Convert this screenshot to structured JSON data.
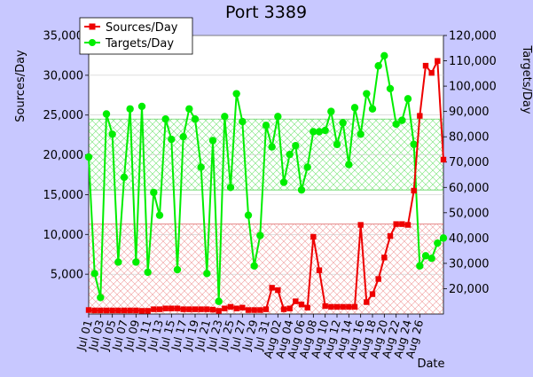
{
  "chart_data": {
    "type": "line",
    "title": "Port 3389",
    "xlabel": "Date",
    "ylabel_left": "Sources/Day",
    "ylabel_right": "Targets/Day",
    "ylim_left": [
      0,
      35000
    ],
    "ylim_right": [
      10000,
      120000
    ],
    "yticks_left": [
      "5,000",
      "10,000",
      "15,000",
      "20,000",
      "25,000",
      "30,000",
      "35,000"
    ],
    "yticks_left_values": [
      5000,
      10000,
      15000,
      20000,
      25000,
      30000,
      35000
    ],
    "yticks_right": [
      "20,000",
      "30,000",
      "40,000",
      "50,000",
      "60,000",
      "70,000",
      "80,000",
      "90,000",
      "100,000",
      "110,000",
      "120,000"
    ],
    "yticks_right_values": [
      20000,
      30000,
      40000,
      50000,
      60000,
      70000,
      80000,
      90000,
      100000,
      110000,
      120000
    ],
    "x_tick_labels": [
      "Jul 01",
      "Jul 03",
      "Jul 05",
      "Jul 07",
      "Jul 09",
      "Jul 11",
      "Jul 13",
      "Jul 15",
      "Jul 17",
      "Jul 19",
      "Jul 21",
      "Jul 23",
      "Jul 25",
      "Jul 27",
      "Jul 29",
      "Jul 31",
      "Aug 02",
      "Aug 04",
      "Aug 06",
      "Aug 08",
      "Aug 10",
      "Aug 12",
      "Aug 14",
      "Aug 16",
      "Aug 18",
      "Aug 20",
      "Aug 22",
      "Aug 24",
      "Aug 26"
    ],
    "legend_position": "top-left",
    "grid": true,
    "colors": {
      "sources": "#ee0000",
      "targets": "#00ee00",
      "background": "#c8c8ff",
      "plot_bg": "#ffffff"
    },
    "series": [
      {
        "name": "Sources/Day",
        "axis": "left",
        "marker": "square",
        "values": [
          500,
          450,
          450,
          450,
          450,
          450,
          450,
          450,
          450,
          400,
          400,
          600,
          600,
          700,
          700,
          700,
          600,
          600,
          600,
          600,
          600,
          550,
          400,
          700,
          900,
          700,
          800,
          500,
          500,
          500,
          600,
          3300,
          3000,
          600,
          700,
          1600,
          1200,
          800,
          9700,
          5500,
          1000,
          900,
          900,
          900,
          900,
          900,
          11200,
          1500,
          2500,
          4400,
          7100,
          9800,
          11300,
          11300,
          11200,
          15500,
          24900,
          31200,
          30300,
          31800,
          19400
        ]
      },
      {
        "name": "Targets/Day",
        "axis": "right",
        "marker": "circle",
        "values": [
          72000,
          26000,
          16500,
          89000,
          81000,
          30500,
          64000,
          91000,
          30500,
          92000,
          26500,
          58000,
          49000,
          87000,
          79000,
          27500,
          80000,
          91000,
          87000,
          68000,
          26000,
          78500,
          15000,
          88000,
          60000,
          97000,
          86000,
          49000,
          29000,
          41000,
          84500,
          76000,
          88000,
          62000,
          73000,
          76500,
          59000,
          68000,
          82000,
          82000,
          82500,
          90000,
          77000,
          85500,
          69000,
          91500,
          81000,
          97000,
          91000,
          108000,
          112000,
          99000,
          85000,
          86500,
          95000,
          77000,
          29000,
          33000,
          32000,
          38000,
          40000
        ]
      }
    ]
  }
}
